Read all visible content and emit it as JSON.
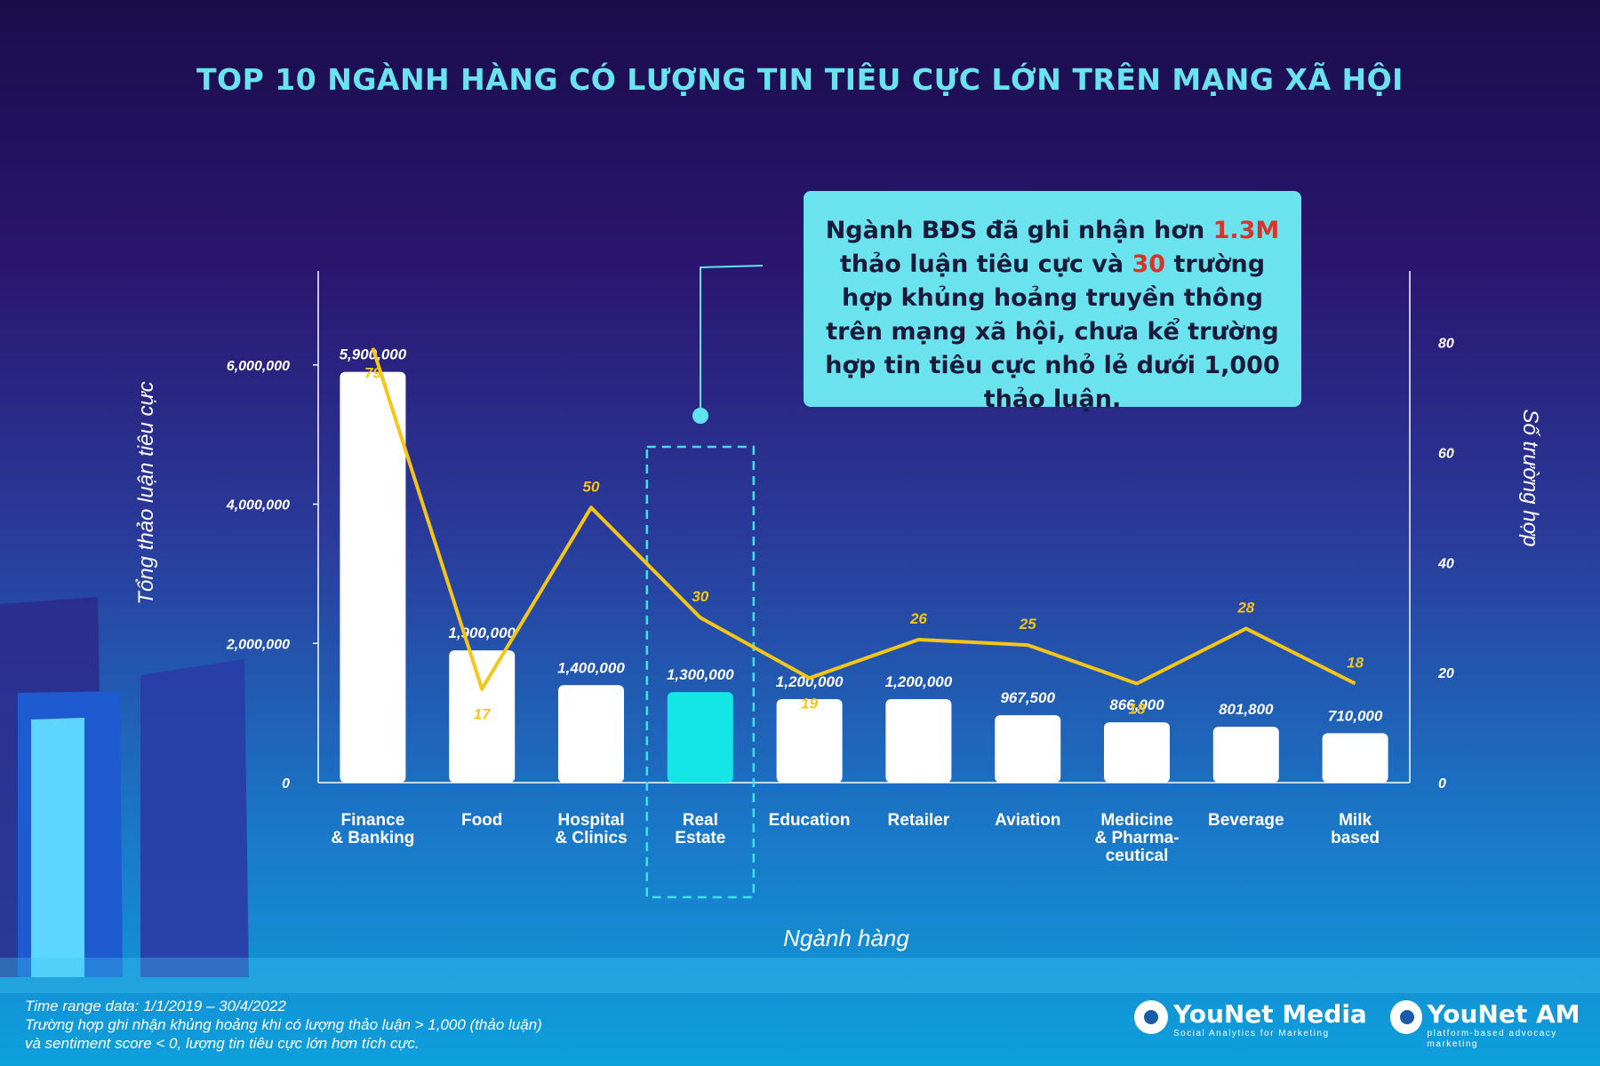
{
  "title": "TOP 10 NGÀNH HÀNG CÓ LƯỢNG TIN TIÊU CỰC LỚN TRÊN MẠNG XÃ HỘI",
  "callout": {
    "p1": "Ngành BĐS đã ghi nhận hơn ",
    "h1": "1.3M",
    "p2": " thảo luận tiêu cực và ",
    "h2": "30",
    "p3": " trường hợp khủng hoảng truyền thông trên mạng xã hội, chưa kể trường hợp tin tiêu cực nhỏ lẻ dưới 1,000 thảo luận."
  },
  "footnote": {
    "line1": "Time range data: 1/1/2019 – 30/4/2022",
    "line2": "Trường hợp ghi nhận khủng hoảng khi có lượng thảo luận > 1,000 (thảo luận)",
    "line3": "và sentiment score < 0, lượng tin tiêu cực lớn hơn tích cực."
  },
  "logos": [
    {
      "name": "YouNet Media",
      "tagline": "Social Analytics for Marketing"
    },
    {
      "name": "YouNet AM",
      "tagline": "platform-based advocacy marketing"
    }
  ],
  "colors": {
    "bar": "#ffffff",
    "highlight_bar": "#14e6e6",
    "line": "#f5c518",
    "line_label": "#f5c518",
    "title": "#6be3ee",
    "callout_bg": "#6be3ee",
    "callout_highlight": "#d7352b",
    "dashed_box": "#3fe0e8"
  },
  "chart_data": {
    "type": "bar",
    "xlabel": "Ngành hàng",
    "ylabel": "Tổng thảo luận tiêu cực",
    "y2label": "Số trường hợp",
    "ylim": [
      0,
      7350000
    ],
    "y2lim": [
      0,
      93
    ],
    "yticks": [
      "0",
      "2,000,000",
      "4,000,000",
      "6,000,000"
    ],
    "y2ticks": [
      "0",
      "20",
      "40",
      "60",
      "80"
    ],
    "highlight_index": 3,
    "categories": [
      [
        "Finance",
        "& Banking"
      ],
      [
        "Food"
      ],
      [
        "Hospital",
        "& Clinics"
      ],
      [
        "Real",
        "Estate"
      ],
      [
        "Education"
      ],
      [
        "Retailer"
      ],
      [
        "Aviation"
      ],
      [
        "Medicine",
        "& Pharma-",
        "ceutical"
      ],
      [
        "Beverage"
      ],
      [
        "Milk",
        "based"
      ]
    ],
    "series": [
      {
        "name": "Tổng thảo luận tiêu cực",
        "type": "bar",
        "values": [
          5900000,
          1900000,
          1400000,
          1300000,
          1200000,
          1200000,
          967500,
          866000,
          801800,
          710000
        ],
        "labels": [
          "5,900,000",
          "1,900,000",
          "1,400,000",
          "1,300,000",
          "1,200,000",
          "1,200,000",
          "967,500",
          "866,000",
          "801,800",
          "710,000"
        ]
      },
      {
        "name": "Số trường hợp",
        "type": "line",
        "values": [
          79,
          17,
          50,
          30,
          19,
          26,
          25,
          18,
          28,
          18
        ],
        "labels": [
          "79",
          "17",
          "50",
          "30",
          "19",
          "26",
          "25",
          "18",
          "28",
          "18"
        ]
      }
    ]
  }
}
